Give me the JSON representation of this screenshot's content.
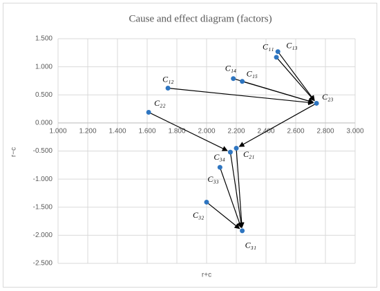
{
  "chart_data": {
    "type": "scatter",
    "title": "Cause and effect diagram (factors)",
    "x_label": "r+c",
    "y_label": "r−c",
    "points": {
      "labels": [
        "C₁₃",
        "C₁₁",
        "C₁₄",
        "C₁₅",
        "C₁₂",
        "C₂₂",
        "C₂₃",
        "C₂₁",
        "C₃₄",
        "C₃₃",
        "C₃₂",
        "C₃₁"
      ],
      "x": [
        2.48,
        2.47,
        2.18,
        2.24,
        1.74,
        1.61,
        2.74,
        2.2,
        2.16,
        2.09,
        2.0,
        2.24
      ],
      "y": [
        1.27,
        1.17,
        0.79,
        0.74,
        0.62,
        0.19,
        0.35,
        -0.45,
        -0.52,
        -0.79,
        -1.41,
        -1.92
      ]
    },
    "color": "#2e75c0",
    "arrows": [
      [
        0,
        6
      ],
      [
        1,
        6
      ],
      [
        2,
        6
      ],
      [
        3,
        6
      ],
      [
        4,
        6
      ],
      [
        5,
        8
      ],
      [
        6,
        7
      ],
      [
        7,
        11
      ],
      [
        8,
        11
      ],
      [
        9,
        11
      ],
      [
        10,
        11
      ]
    ],
    "xlim": [
      1,
      3
    ],
    "ylim": [
      -2.5,
      1.5
    ],
    "xticks": [
      {
        "value": 1,
        "label": "1.000"
      },
      {
        "value": 1.2,
        "label": "1.200"
      },
      {
        "value": 1.4,
        "label": "1.400"
      },
      {
        "value": 1.6,
        "label": "1.600"
      },
      {
        "value": 1.8,
        "label": "1.800"
      },
      {
        "value": 2,
        "label": "2.000"
      },
      {
        "value": 2.2,
        "label": "2.200"
      },
      {
        "value": 2.4,
        "label": "2.400"
      },
      {
        "value": 2.6,
        "label": "2.600"
      },
      {
        "value": 2.8,
        "label": "2.800"
      },
      {
        "value": 3,
        "label": "3.000"
      }
    ],
    "yticks": [
      {
        "value": 1.5,
        "label": "1.500"
      },
      {
        "value": 1,
        "label": "1.000"
      },
      {
        "value": 0.5,
        "label": "0.500"
      },
      {
        "value": 0,
        "label": "0.000"
      },
      {
        "value": -0.5,
        "label": "-0.500"
      },
      {
        "value": -1,
        "label": "-1.000"
      },
      {
        "value": -1.5,
        "label": "-1.500"
      },
      {
        "value": -2,
        "label": "-2.000"
      },
      {
        "value": -2.5,
        "label": "-2.500"
      }
    ],
    "grid": true
  }
}
